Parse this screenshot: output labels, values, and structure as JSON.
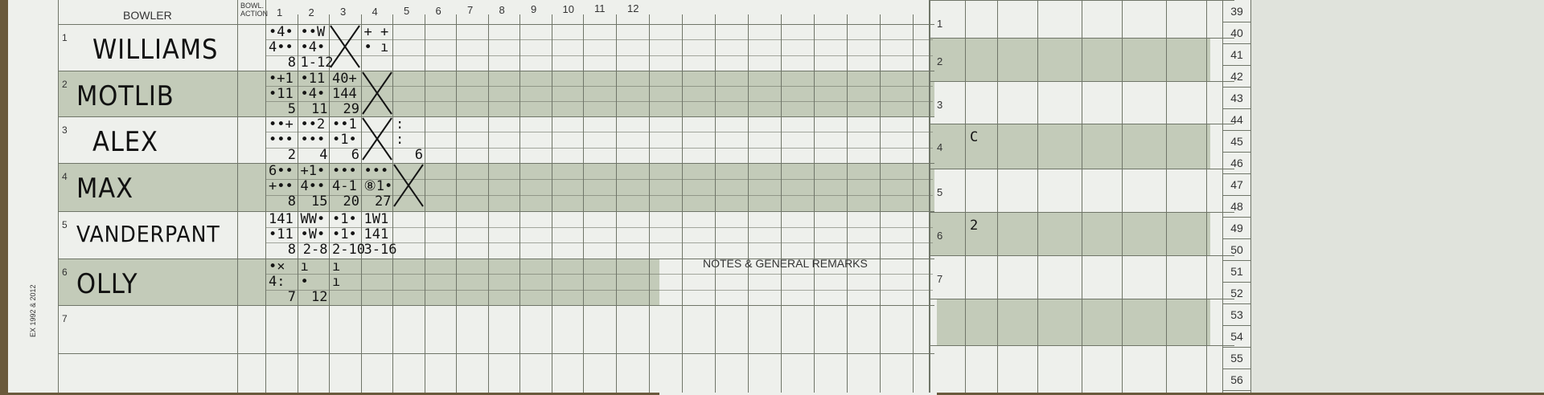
{
  "header": {
    "bowler": "BOWLER",
    "bowl_action": "BOWL. ACTION",
    "overs": [
      "1",
      "2",
      "3",
      "4",
      "5",
      "6",
      "7",
      "8",
      "9",
      "10",
      "11",
      "12"
    ]
  },
  "bowlers": [
    {
      "num": "1",
      "name": "WILLIAMS",
      "overs": [
        [
          "•4•",
          "4••",
          "8"
        ],
        [
          "••W",
          "•4•",
          "1-12"
        ],
        [
          "X"
        ],
        [
          "+ +",
          "• ı",
          ""
        ]
      ]
    },
    {
      "num": "2",
      "name": "MOTLIB",
      "overs": [
        [
          "•+1",
          "•11",
          "5"
        ],
        [
          "•11",
          "•4•",
          "11"
        ],
        [
          "40+",
          "144",
          "29"
        ],
        [
          "X"
        ]
      ]
    },
    {
      "num": "3",
      "name": "ALEX",
      "overs": [
        [
          "••+",
          "•••",
          "2"
        ],
        [
          "••2",
          "•••",
          "4"
        ],
        [
          "••1",
          "•1•",
          "6"
        ],
        [
          "X"
        ],
        [
          ":",
          ":",
          "6"
        ]
      ]
    },
    {
      "num": "4",
      "name": "MAX",
      "overs": [
        [
          "6••",
          "+••",
          "8"
        ],
        [
          "+1•",
          "4••",
          "15"
        ],
        [
          "•••",
          "4-1",
          "20"
        ],
        [
          "•••",
          "⑧1•",
          "27"
        ],
        [
          "X"
        ]
      ]
    },
    {
      "num": "5",
      "name": "VANDERPANT",
      "overs": [
        [
          "141",
          "•11",
          "8"
        ],
        [
          "WW•",
          "•W•",
          "2-8"
        ],
        [
          "•1•",
          "•1•",
          "2-10"
        ],
        [
          "1W1",
          "141",
          "3-16"
        ]
      ]
    },
    {
      "num": "6",
      "name": "OLLY",
      "overs": [
        [
          "•×",
          "4:",
          "7"
        ],
        [
          "ı",
          "•",
          "12"
        ],
        [
          "ı",
          "ı",
          ""
        ]
      ]
    },
    {
      "num": "7",
      "name": "",
      "overs": []
    }
  ],
  "notes_label": "NOTES & GENERAL REMARKS",
  "copyright": "EX 1992 & 2012",
  "right_rows": [
    "1",
    "2",
    "3",
    "4",
    "5",
    "6",
    "7"
  ],
  "right_marks": [
    {
      "row": "4",
      "text": "C"
    },
    {
      "row": "6",
      "text": "2"
    }
  ],
  "side_numbers": [
    "39",
    "40",
    "41",
    "42",
    "43",
    "44",
    "45",
    "46",
    "47",
    "48",
    "49",
    "50",
    "51",
    "52",
    "53",
    "54",
    "55",
    "56"
  ],
  "colors": {
    "paper": "#eef0ec",
    "band": "#c3cbb9",
    "line": "#6f7568",
    "ink": "#141414"
  }
}
